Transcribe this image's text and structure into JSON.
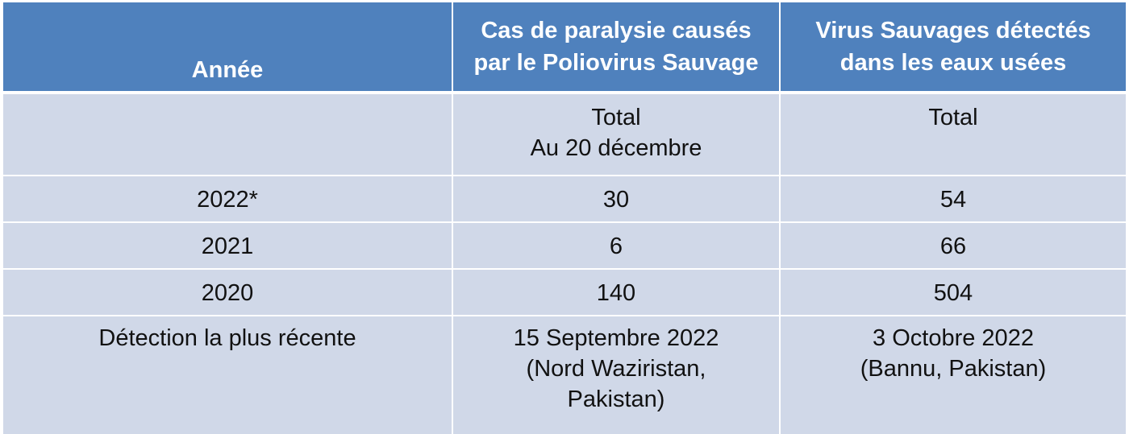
{
  "table": {
    "headers": {
      "year": "Année",
      "cases_line1": "Cas de paralysie causés",
      "cases_line2": "par le Poliovirus Sauvage",
      "virus_line1": "Virus  Sauvages détectés",
      "virus_line2": "dans les eaux usées"
    },
    "subheader": {
      "year": "",
      "cases_line1": "Total",
      "cases_line2": "Au 20 décembre",
      "virus_line1": "Total"
    },
    "rows": [
      {
        "year": "2022*",
        "cases": "30",
        "virus": "54"
      },
      {
        "year": "2021",
        "cases": "6",
        "virus": "66"
      },
      {
        "year": "2020",
        "cases": "140",
        "virus": "504"
      }
    ],
    "recent": {
      "label": "Détection la plus récente",
      "cases_line1": "15 Septembre 2022",
      "cases_line2": "(Nord Waziristan,",
      "cases_line3": "Pakistan)",
      "virus_line1": "3 Octobre 2022",
      "virus_line2": "(Bannu, Pakistan)"
    }
  },
  "colors": {
    "header_bg": "#4f81bd",
    "cell_bg": "#d0d8e8",
    "header_text": "#ffffff"
  }
}
